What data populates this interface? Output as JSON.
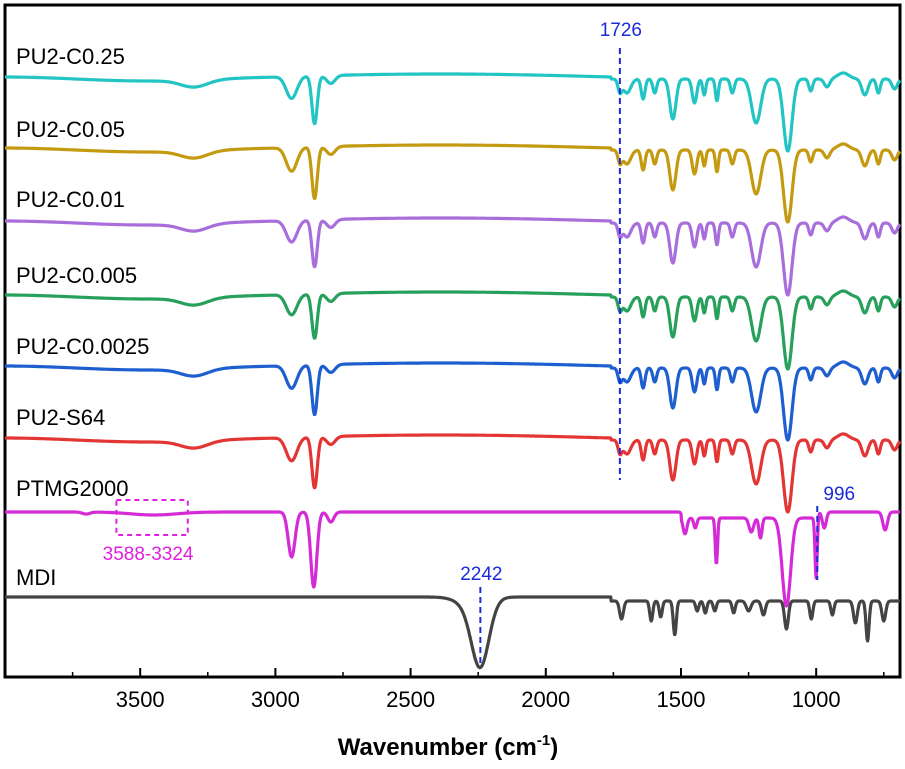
{
  "chart_data": {
    "type": "line",
    "title": "",
    "xlabel": "Wavenumber (cm",
    "xlabel_sup": "-1",
    "xlabel_close": ")",
    "ylabel": "",
    "xlim": [
      4000,
      690
    ],
    "xticks": [
      3500,
      3000,
      2500,
      2000,
      1500,
      1000
    ],
    "series": [
      {
        "name": "PU2-C0.25",
        "color": "#22c4c4",
        "style": "pu",
        "variant": 0
      },
      {
        "name": "PU2-C0.05",
        "color": "#c49a10",
        "style": "pu",
        "variant": 1
      },
      {
        "name": "PU2-C0.01",
        "color": "#a86fdc",
        "style": "pu",
        "variant": 2
      },
      {
        "name": "PU2-C0.005",
        "color": "#26a05a",
        "style": "pu",
        "variant": 3
      },
      {
        "name": "PU2-C0.0025",
        "color": "#1e5fd0",
        "style": "pu",
        "variant": 4
      },
      {
        "name": "PU2-S64",
        "color": "#e43535",
        "style": "pu",
        "variant": 5
      },
      {
        "name": "PTMG2000",
        "color": "#d42bd6",
        "style": "ptmg",
        "variant": 6
      },
      {
        "name": "MDI",
        "color": "#444444",
        "style": "mdi",
        "variant": 7
      }
    ],
    "annotations": [
      {
        "text": "1726",
        "x": 1726,
        "color": "#1a2bd8"
      },
      {
        "text": "2242",
        "x": 2242,
        "color": "#1a2bd8"
      },
      {
        "text": "996",
        "x": 996,
        "color": "#1a2bd8"
      },
      {
        "text": "3588-3324",
        "x_from": 3588,
        "x_to": 3324,
        "color": "#e020e0"
      }
    ]
  }
}
